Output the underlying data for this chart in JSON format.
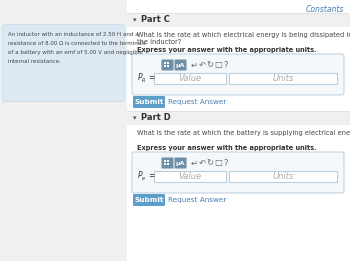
{
  "bg_color": "#f0f0f0",
  "left_panel_bg": "#dce8f2",
  "left_panel_text_line1": "An inductor with an inductance of 2.50 H and a",
  "left_panel_text_line2": "resistance of 8.00 Ω is connected to the terminals",
  "left_panel_text_line3": "of a battery with an emf of 5.00 V and negligible",
  "left_panel_text_line4": "internal resistance.",
  "constants_link": "Constants",
  "constants_color": "#4a7fb5",
  "part_c_label": "Part C",
  "part_c_question_1": "What is the rate at which electrical energy is being dissipated in the resistance of",
  "part_c_question_2": "the inductor?",
  "part_c_bold": "Express your answer with the appropriate units.",
  "part_c_pr": "P",
  "part_c_pr_sub": "R",
  "part_d_label": "Part D",
  "part_d_question": "What is the rate at which the battery is supplying electrical energy to the circuit?",
  "part_d_bold": "Express your answer with the appropriate units.",
  "part_d_pr": "P",
  "part_d_pr_sub": "e",
  "value_placeholder": "Value",
  "units_placeholder": "Units",
  "submit_bg": "#5b9ec9",
  "submit_text": "Submit",
  "request_text": "Request Answer",
  "request_color": "#4a7fb5",
  "input_box_bg": "#ffffff",
  "input_border": "#b8cfe0",
  "toolbar_dark": "#6e8fa5",
  "panel_bg": "#f8f8f8",
  "question_color": "#444444",
  "label_color": "#333333",
  "separator_color": "#dddddd",
  "part_header_bg": "#f0f0f0",
  "arrow_sym": "▾",
  "figw": 3.5,
  "figh": 2.61,
  "dpi": 100
}
